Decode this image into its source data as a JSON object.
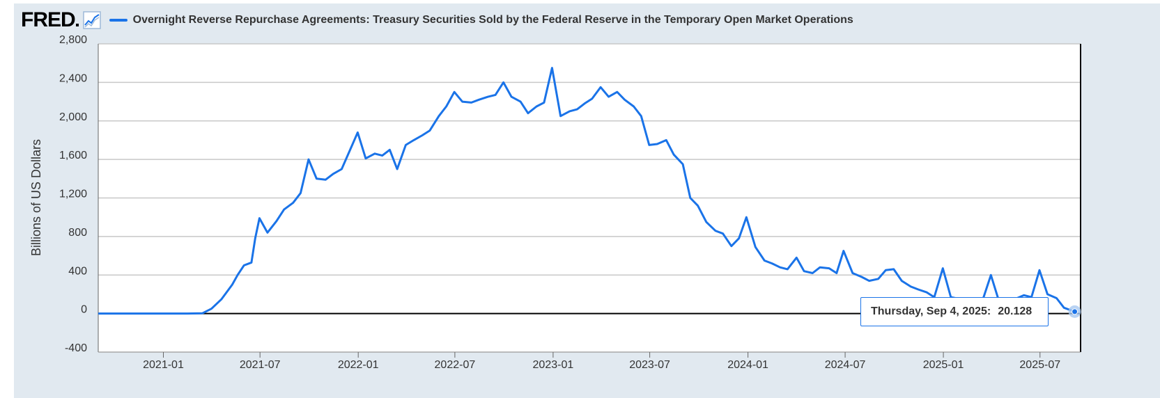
{
  "header": {
    "logo_text": "FRED",
    "legend_label": "Overnight Reverse Repurchase Agreements: Treasury Securities Sold by the Federal Reserve in the Temporary Open Market Operations"
  },
  "tooltip": {
    "date": "Thursday, Sep 4, 2025:",
    "value": "20.128"
  },
  "colors": {
    "series": "#1a73e8",
    "panel": "#e1e9f0",
    "grid": "#c8c8c8"
  },
  "chart_data": {
    "type": "line",
    "title": "Overnight Reverse Repurchase Agreements: Treasury Securities Sold by the Federal Reserve in the Temporary Open Market Operations",
    "xlabel": "",
    "ylabel": "Billions of US Dollars",
    "ylim": [
      -400,
      2800
    ],
    "xlim": [
      "2020-09-01",
      "2025-09-15"
    ],
    "yticks": [
      -400,
      0,
      400,
      800,
      1200,
      1600,
      2000,
      2400,
      2800
    ],
    "ytick_labels": [
      "-400",
      "0",
      "400",
      "800",
      "1,200",
      "1,600",
      "2,000",
      "2,400",
      "2,800"
    ],
    "xticks": [
      "2021-01",
      "2021-07",
      "2022-01",
      "2022-07",
      "2023-01",
      "2023-07",
      "2024-01",
      "2024-07",
      "2025-01",
      "2025-07"
    ],
    "grid": true,
    "series": [
      {
        "name": "Overnight Reverse Repurchase Agreements: Treasury Securities Sold by the Federal Reserve in the Temporary Open Market Operations",
        "x": [
          "2020-09-01",
          "2020-11-01",
          "2021-01-01",
          "2021-02-15",
          "2021-03-15",
          "2021-04-01",
          "2021-04-20",
          "2021-05-10",
          "2021-05-20",
          "2021-06-01",
          "2021-06-15",
          "2021-06-22",
          "2021-06-30",
          "2021-07-15",
          "2021-08-01",
          "2021-08-15",
          "2021-09-01",
          "2021-09-15",
          "2021-09-30",
          "2021-10-15",
          "2021-11-01",
          "2021-11-15",
          "2021-12-01",
          "2021-12-31",
          "2022-01-15",
          "2022-02-01",
          "2022-02-15",
          "2022-03-01",
          "2022-03-15",
          "2022-03-31",
          "2022-04-15",
          "2022-05-01",
          "2022-05-15",
          "2022-06-01",
          "2022-06-15",
          "2022-06-30",
          "2022-07-15",
          "2022-08-01",
          "2022-08-15",
          "2022-09-01",
          "2022-09-15",
          "2022-09-30",
          "2022-10-15",
          "2022-11-01",
          "2022-11-15",
          "2022-12-01",
          "2022-12-15",
          "2022-12-30",
          "2023-01-15",
          "2023-02-01",
          "2023-02-15",
          "2023-03-01",
          "2023-03-15",
          "2023-03-31",
          "2023-04-15",
          "2023-05-01",
          "2023-05-15",
          "2023-06-01",
          "2023-06-15",
          "2023-06-30",
          "2023-07-15",
          "2023-08-01",
          "2023-08-15",
          "2023-09-01",
          "2023-09-15",
          "2023-09-29",
          "2023-10-15",
          "2023-11-01",
          "2023-11-15",
          "2023-12-01",
          "2023-12-15",
          "2023-12-29",
          "2024-01-15",
          "2024-02-01",
          "2024-02-15",
          "2024-03-01",
          "2024-03-15",
          "2024-04-01",
          "2024-04-15",
          "2024-05-01",
          "2024-05-15",
          "2024-06-01",
          "2024-06-15",
          "2024-06-28",
          "2024-07-15",
          "2024-08-01",
          "2024-08-15",
          "2024-09-01",
          "2024-09-15",
          "2024-09-30",
          "2024-10-15",
          "2024-11-01",
          "2024-11-15",
          "2024-12-01",
          "2024-12-15",
          "2024-12-31",
          "2025-01-15",
          "2025-02-01",
          "2025-02-15",
          "2025-03-01",
          "2025-03-15",
          "2025-03-31",
          "2025-04-15",
          "2025-05-01",
          "2025-05-15",
          "2025-06-01",
          "2025-06-15",
          "2025-06-30",
          "2025-07-15",
          "2025-08-01",
          "2025-08-15",
          "2025-09-04"
        ],
        "values": [
          0,
          0,
          0,
          0,
          2,
          50,
          150,
          300,
          400,
          500,
          530,
          780,
          990,
          840,
          960,
          1080,
          1150,
          1250,
          1600,
          1400,
          1390,
          1450,
          1500,
          1880,
          1610,
          1660,
          1640,
          1700,
          1500,
          1750,
          1800,
          1850,
          1900,
          2050,
          2150,
          2300,
          2200,
          2190,
          2220,
          2250,
          2270,
          2400,
          2250,
          2200,
          2080,
          2150,
          2190,
          2550,
          2050,
          2100,
          2120,
          2180,
          2230,
          2350,
          2250,
          2300,
          2220,
          2150,
          2050,
          1750,
          1760,
          1800,
          1650,
          1550,
          1200,
          1120,
          950,
          860,
          830,
          700,
          780,
          1000,
          690,
          550,
          520,
          480,
          460,
          580,
          440,
          420,
          480,
          470,
          420,
          650,
          420,
          380,
          340,
          360,
          450,
          460,
          340,
          280,
          250,
          220,
          170,
          470,
          170,
          150,
          140,
          150,
          130,
          400,
          130,
          120,
          150,
          190,
          170,
          450,
          200,
          160,
          60,
          20
        ]
      }
    ]
  }
}
